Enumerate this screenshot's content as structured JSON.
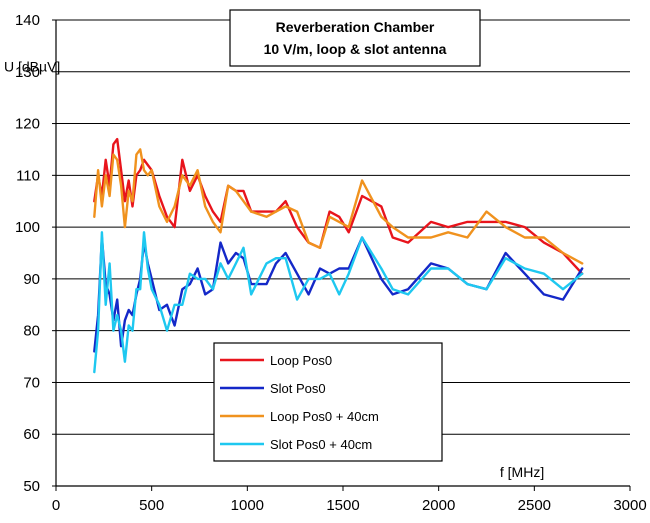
{
  "chart_data": {
    "type": "line",
    "title": "Reverberation Chamber",
    "subtitle": "10 V/m, loop & slot antenna",
    "xlabel": "f [MHz]",
    "ylabel": "U [dBµV]",
    "xlim": [
      0,
      3000
    ],
    "ylim": [
      50,
      140
    ],
    "xticks": [
      0,
      500,
      1000,
      1500,
      2000,
      2500,
      3000
    ],
    "yticks": [
      50,
      60,
      70,
      80,
      90,
      100,
      110,
      120,
      130,
      140
    ],
    "grid": "horizontal",
    "legend_position": "bottom-center",
    "series": [
      {
        "name": "Loop Pos0",
        "color": "#e8141c",
        "x": [
          200,
          220,
          240,
          260,
          280,
          300,
          320,
          340,
          360,
          380,
          400,
          420,
          440,
          460,
          480,
          500,
          540,
          580,
          620,
          660,
          700,
          740,
          780,
          820,
          860,
          900,
          940,
          980,
          1020,
          1100,
          1150,
          1200,
          1260,
          1320,
          1380,
          1430,
          1480,
          1530,
          1600,
          1700,
          1760,
          1840,
          1960,
          2050,
          2150,
          2250,
          2350,
          2450,
          2550,
          2650,
          2750
        ],
        "y": [
          105,
          110,
          106,
          113,
          108,
          116,
          117,
          111,
          105,
          109,
          104,
          110,
          111,
          113,
          112,
          111,
          106,
          102,
          100,
          113,
          107,
          110,
          106,
          103,
          101,
          108,
          107,
          107,
          103,
          103,
          103,
          105,
          100,
          97,
          96,
          103,
          102,
          99,
          106,
          104,
          98,
          97,
          101,
          100,
          101,
          101,
          101,
          100,
          97,
          95,
          91
        ]
      },
      {
        "name": "Slot Pos0",
        "color": "#1428c8",
        "x": [
          200,
          220,
          240,
          260,
          280,
          300,
          320,
          340,
          360,
          380,
          400,
          420,
          440,
          460,
          480,
          500,
          540,
          580,
          620,
          660,
          700,
          740,
          780,
          820,
          860,
          900,
          940,
          980,
          1020,
          1100,
          1150,
          1200,
          1260,
          1320,
          1380,
          1430,
          1480,
          1530,
          1600,
          1700,
          1760,
          1840,
          1960,
          2050,
          2150,
          2250,
          2350,
          2450,
          2550,
          2650,
          2750
        ],
        "y": [
          76,
          83,
          98,
          89,
          87,
          82,
          86,
          77,
          82,
          84,
          83,
          87,
          90,
          97,
          93,
          90,
          84,
          85,
          81,
          88,
          89,
          92,
          87,
          88,
          97,
          93,
          95,
          94,
          89,
          89,
          93,
          95,
          91,
          87,
          92,
          91,
          92,
          92,
          98,
          90,
          87,
          88,
          93,
          92,
          89,
          88,
          95,
          91,
          87,
          86,
          92
        ]
      },
      {
        "name": "Loop Pos0 + 40cm",
        "color": "#f0921e",
        "x": [
          200,
          220,
          240,
          260,
          280,
          300,
          320,
          340,
          360,
          380,
          400,
          420,
          440,
          460,
          480,
          500,
          540,
          580,
          620,
          660,
          700,
          740,
          780,
          820,
          860,
          900,
          940,
          980,
          1020,
          1100,
          1150,
          1200,
          1260,
          1320,
          1380,
          1430,
          1480,
          1530,
          1600,
          1700,
          1760,
          1840,
          1960,
          2050,
          2150,
          2250,
          2350,
          2450,
          2550,
          2650,
          2750
        ],
        "y": [
          102,
          111,
          104,
          110,
          106,
          114,
          113,
          108,
          100,
          107,
          105,
          114,
          115,
          111,
          110,
          111,
          104,
          101,
          104,
          110,
          108,
          111,
          104,
          101,
          99,
          108,
          107,
          105,
          103,
          102,
          103,
          104,
          103,
          97,
          96,
          102,
          101,
          100,
          109,
          102,
          100,
          98,
          98,
          99,
          98,
          103,
          100,
          98,
          98,
          95,
          93
        ]
      },
      {
        "name": "Slot Pos0 + 40cm",
        "color": "#1ec8f0",
        "x": [
          200,
          220,
          240,
          260,
          280,
          300,
          320,
          340,
          360,
          380,
          400,
          420,
          440,
          460,
          480,
          500,
          540,
          580,
          620,
          660,
          700,
          740,
          780,
          820,
          860,
          900,
          940,
          980,
          1020,
          1100,
          1150,
          1200,
          1260,
          1320,
          1380,
          1430,
          1480,
          1530,
          1600,
          1700,
          1760,
          1840,
          1960,
          2050,
          2150,
          2250,
          2350,
          2450,
          2550,
          2650,
          2750
        ],
        "y": [
          72,
          80,
          99,
          85,
          93,
          80,
          83,
          80,
          74,
          81,
          80,
          88,
          88,
          99,
          92,
          88,
          85,
          80,
          85,
          85,
          91,
          90,
          90,
          88,
          93,
          90,
          93,
          96,
          87,
          93,
          94,
          94,
          86,
          90,
          90,
          91,
          87,
          91,
          98,
          92,
          88,
          87,
          92,
          92,
          89,
          88,
          94,
          92,
          91,
          88,
          91
        ]
      }
    ]
  }
}
